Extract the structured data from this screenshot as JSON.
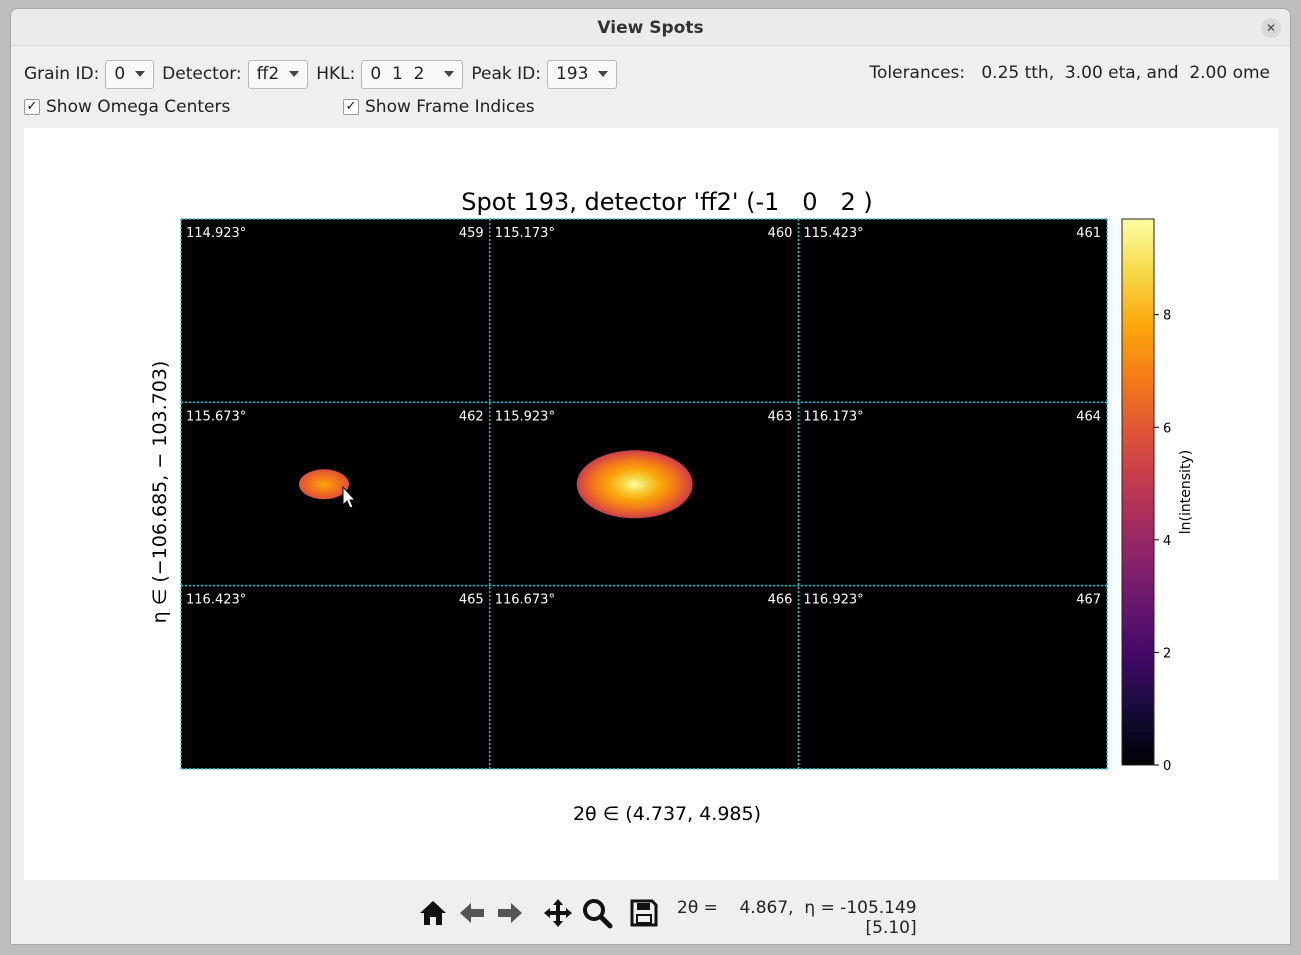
{
  "window": {
    "title": "View Spots"
  },
  "controls": {
    "grain_label": "Grain ID:",
    "grain_value": "0",
    "detector_label": "Detector:",
    "detector_value": "ff2",
    "hkl_label": "HKL:",
    "hkl_value": "0  1  2",
    "peak_label": "Peak ID:",
    "peak_value": "193",
    "tolerances": "Tolerances:   0.25 tth,  3.00 eta, and  2.00 ome"
  },
  "checks": {
    "omega_centers": "Show Omega Centers",
    "frame_indices": "Show Frame Indices"
  },
  "colors": {
    "grid": "#00c8d8",
    "panel_bg": "#000000",
    "accent": "#fcffa4"
  },
  "chart_data": {
    "type": "heatmap",
    "title": "Spot 193, detector 'ff2' (-1   0   2 )",
    "xlabel": "2θ ∈ (4.737, 4.985)",
    "ylabel": "η ∈ (−106.685,  − 103.703)",
    "colorbar_label": "ln(intensity)",
    "colorbar_ticks": [
      "0",
      "2",
      "4",
      "6",
      "8"
    ],
    "colorbar_range": [
      0,
      9.7
    ],
    "colormap": "inferno",
    "frames": [
      {
        "omega": "114.923°",
        "index": "459",
        "peak": 0
      },
      {
        "omega": "115.173°",
        "index": "460",
        "peak": 0
      },
      {
        "omega": "115.423°",
        "index": "461",
        "peak": 0
      },
      {
        "omega": "115.673°",
        "index": "462",
        "peak": 7.2
      },
      {
        "omega": "115.923°",
        "index": "463",
        "peak": 9.7
      },
      {
        "omega": "116.173°",
        "index": "464",
        "peak": 0
      },
      {
        "omega": "116.423°",
        "index": "465",
        "peak": 0
      },
      {
        "omega": "116.673°",
        "index": "466",
        "peak": 0
      },
      {
        "omega": "116.923°",
        "index": "467",
        "peak": 0
      }
    ]
  },
  "toolbar": {
    "coord_line1": "2θ =    4.867,  η = -105.149",
    "coord_line2": "[5.10]"
  }
}
